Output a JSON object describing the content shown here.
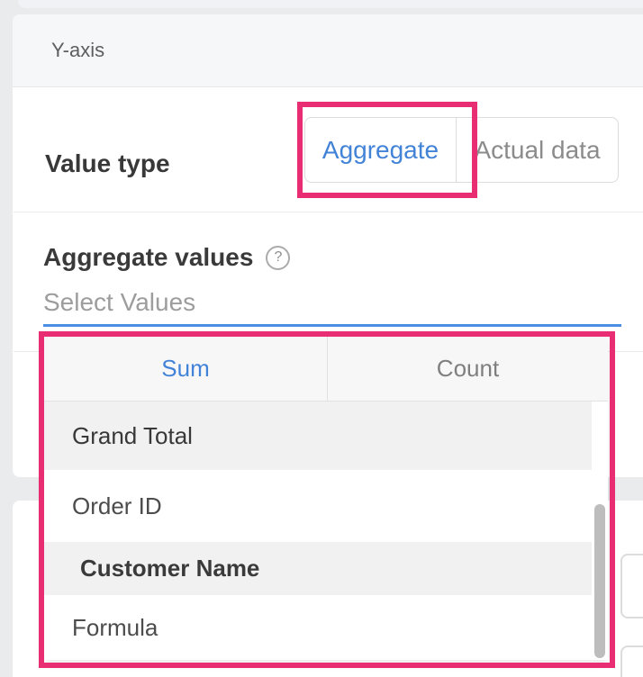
{
  "panel": {
    "title": "Y-axis"
  },
  "value_type": {
    "label": "Value type",
    "selected": "Aggregate",
    "options": [
      {
        "label": "Aggregate"
      },
      {
        "label": "Actual data"
      }
    ]
  },
  "aggregate_values": {
    "label": "Aggregate values",
    "help_icon": "?",
    "placeholder": "Select Values"
  },
  "dropdown": {
    "selected_tab": "Sum",
    "tabs": [
      {
        "label": "Sum"
      },
      {
        "label": "Count"
      }
    ],
    "items": [
      {
        "label": "Grand Total"
      },
      {
        "label": "Order ID"
      },
      {
        "label": "Customer Name"
      },
      {
        "label": "Formula"
      }
    ]
  },
  "colors": {
    "accent_blue": "#4283d7",
    "focus_underline": "#4a90e2",
    "annotation_pink": "#e82d73",
    "row_highlight": "#f1f1f2"
  }
}
